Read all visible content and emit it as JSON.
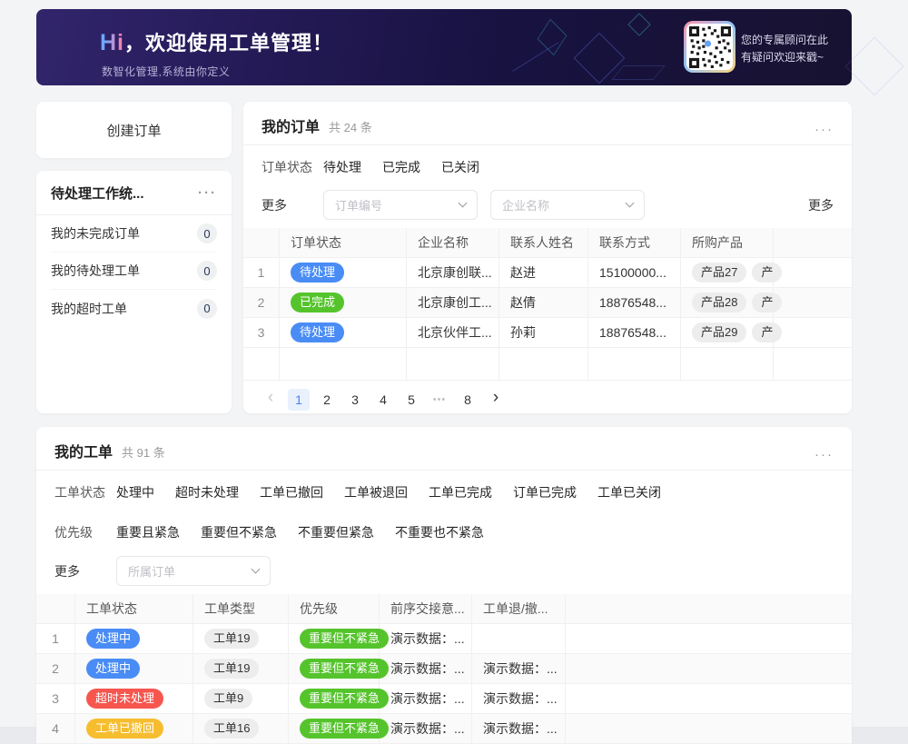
{
  "banner": {
    "greeting_hi": "Hi",
    "greeting_rest": "，欢迎使用工单管理！",
    "subtitle": "数智化管理,系统由你定义",
    "qr_caption_line1": "您的专属顾问在此",
    "qr_caption_line2": "有疑问欢迎来戳~"
  },
  "icons": {
    "more_dots": "···",
    "ellipsis": "•••",
    "prev_arrow": "‹",
    "next_arrow": "›"
  },
  "colors": {
    "blue": "#4a8cf5",
    "green": "#55c42c",
    "red": "#f7564e",
    "yellow": "#f6bd2f",
    "accent": "#4c7ff0"
  },
  "sidebar": {
    "create_order_label": "创建订单",
    "stats": {
      "title": "待处理工作统...",
      "items": [
        {
          "label": "我的未完成订单",
          "count": "0"
        },
        {
          "label": "我的待处理工单",
          "count": "0"
        },
        {
          "label": "我的超时工单",
          "count": "0"
        }
      ]
    }
  },
  "orders": {
    "title": "我的订单",
    "count_text": "共 24 条",
    "filter_label": "订单状态",
    "filter_options": [
      "待处理",
      "已完成",
      "已关闭"
    ],
    "more_label": "更多",
    "more_link": "更多",
    "selects": {
      "order_no": "订单编号",
      "company": "企业名称"
    },
    "table": {
      "headers": [
        "",
        "订单状态",
        "企业名称",
        "联系人姓名",
        "联系方式",
        "所购产品",
        ""
      ],
      "rows": [
        {
          "index": "1",
          "status": "待处理",
          "status_color": "blue",
          "company": "北京康创联...",
          "contact": "赵进",
          "phone": "15100000...",
          "products": [
            "产品27",
            "产"
          ]
        },
        {
          "index": "2",
          "status": "已完成",
          "status_color": "green",
          "company": "北京康创工...",
          "contact": "赵倩",
          "phone": "18876548...",
          "products": [
            "产品28",
            "产"
          ]
        },
        {
          "index": "3",
          "status": "待处理",
          "status_color": "blue",
          "company": "北京伙伴工...",
          "contact": "孙莉",
          "phone": "18876548...",
          "products": [
            "产品29",
            "产"
          ]
        }
      ]
    },
    "pagination": {
      "pages": [
        "1",
        "2",
        "3",
        "4",
        "5",
        "•••",
        "8"
      ],
      "active_page": "1"
    }
  },
  "tickets": {
    "title": "我的工单",
    "count_text": "共 91 条",
    "status_label": "工单状态",
    "status_options": [
      "处理中",
      "超时未处理",
      "工单已撤回",
      "工单被退回",
      "工单已完成",
      "订单已完成",
      "工单已关闭"
    ],
    "priority_label": "优先级",
    "priority_options": [
      "重要且紧急",
      "重要但不紧急",
      "不重要但紧急",
      "不重要也不紧急"
    ],
    "more_label": "更多",
    "select_placeholder": "所属订单",
    "table": {
      "headers": [
        "",
        "工单状态",
        "工单类型",
        "优先级",
        "前序交接意...",
        "工单退/撤...",
        ""
      ],
      "rows": [
        {
          "index": "1",
          "status": "处理中",
          "status_color": "blue",
          "type": "工单19",
          "priority": "重要但不紧急",
          "priority_color": "green",
          "handover": "演示数据：...",
          "withdraw": ""
        },
        {
          "index": "2",
          "status": "处理中",
          "status_color": "blue",
          "type": "工单19",
          "priority": "重要但不紧急",
          "priority_color": "green",
          "handover": "演示数据：...",
          "withdraw": "演示数据：..."
        },
        {
          "index": "3",
          "status": "超时未处理",
          "status_color": "red",
          "type": "工单9",
          "priority": "重要但不紧急",
          "priority_color": "green",
          "handover": "演示数据：...",
          "withdraw": "演示数据：..."
        },
        {
          "index": "4",
          "status": "工单已撤回",
          "status_color": "yellow",
          "type": "工单16",
          "priority": "重要但不紧急",
          "priority_color": "green",
          "handover": "演示数据：...",
          "withdraw": "演示数据：..."
        }
      ]
    }
  }
}
